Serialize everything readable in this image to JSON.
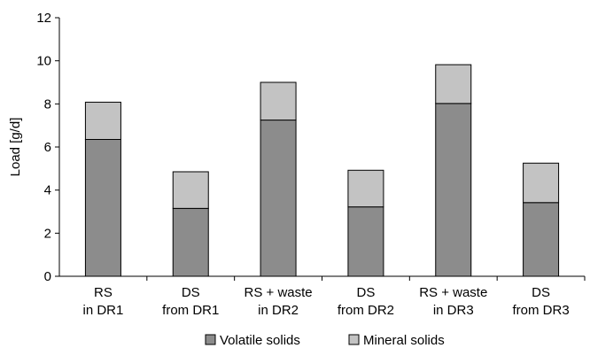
{
  "chart_data": {
    "type": "bar",
    "stacked": true,
    "categories": [
      [
        "RS",
        "in DR1"
      ],
      [
        "DS",
        "from DR1"
      ],
      [
        "RS + waste",
        "in DR2"
      ],
      [
        "DS",
        "from DR2"
      ],
      [
        "RS + waste",
        "in DR3"
      ],
      [
        "DS",
        "from DR3"
      ]
    ],
    "series": [
      {
        "name": "Volatile solids",
        "color": "#8c8c8c",
        "values": [
          6.35,
          3.15,
          7.25,
          3.22,
          8.02,
          3.42
        ]
      },
      {
        "name": "Mineral solids",
        "color": "#c3c3c3",
        "values": [
          1.73,
          1.7,
          1.75,
          1.7,
          1.8,
          1.83
        ]
      }
    ],
    "ylabel": "Load [g/d]",
    "ylim": [
      0,
      12
    ],
    "yticks": [
      0,
      2,
      4,
      6,
      8,
      10,
      12
    ],
    "grid": false,
    "legend_position": "bottom"
  }
}
